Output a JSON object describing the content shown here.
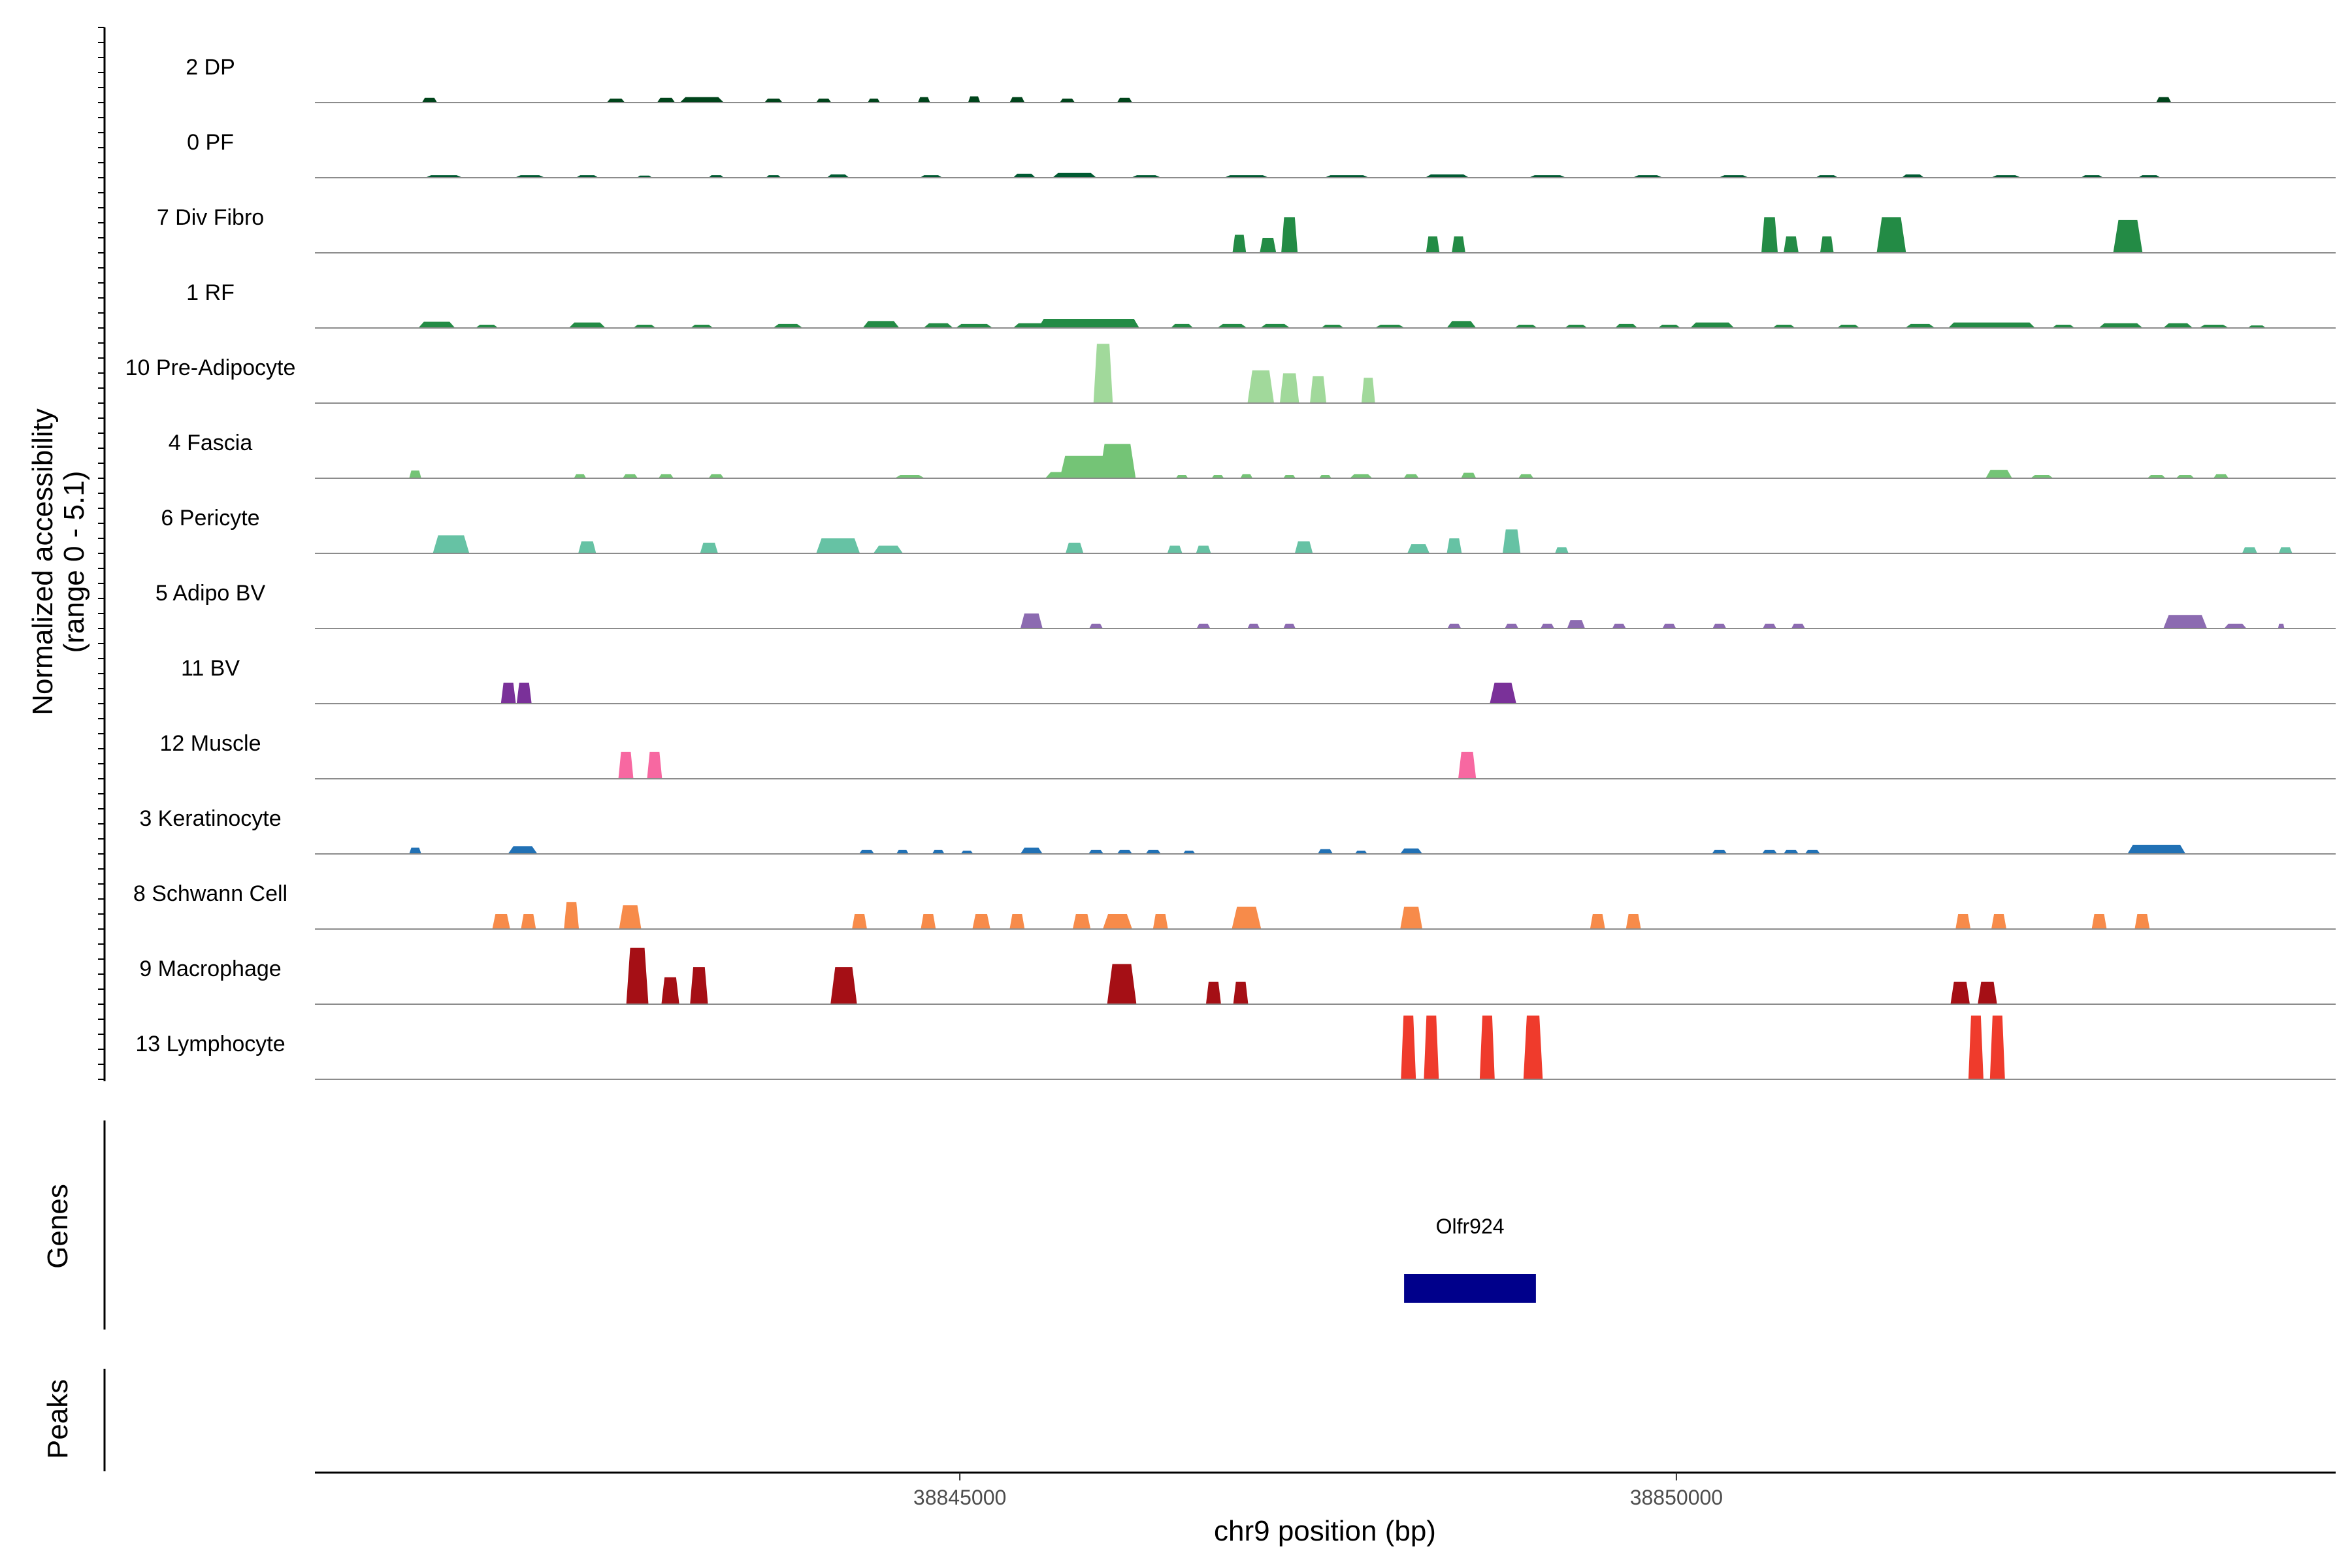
{
  "chart_data": {
    "type": "area",
    "title": "",
    "ylabel_line1": "Normalized accessibility",
    "ylabel_line2": "(range 0 - 5.1)",
    "xlabel": "chr9 position (bp)",
    "xlim": [
      38840500,
      38854600
    ],
    "ylim": [
      0,
      5.1
    ],
    "x_ticks": [
      38845000,
      38850000
    ],
    "x_tick_labels": [
      "38845000",
      "38850000"
    ],
    "genes_label": "Genes",
    "peaks_label": "Peaks",
    "genes": [
      {
        "name": "Olfr924",
        "start": 38848100,
        "end": 38849020,
        "color": "#00008b"
      }
    ],
    "peaks": [],
    "series": [
      {
        "name": "2 DP",
        "color": "#00441b",
        "peaks": [
          [
            38841300,
            100,
            0.3
          ],
          [
            38842600,
            120,
            0.25
          ],
          [
            38842950,
            120,
            0.3
          ],
          [
            38843200,
            300,
            0.35
          ],
          [
            38843700,
            120,
            0.25
          ],
          [
            38844050,
            100,
            0.25
          ],
          [
            38844400,
            80,
            0.25
          ],
          [
            38844750,
            80,
            0.35
          ],
          [
            38845100,
            80,
            0.4
          ],
          [
            38845400,
            100,
            0.35
          ],
          [
            38845750,
            100,
            0.25
          ],
          [
            38846150,
            100,
            0.3
          ],
          [
            38853400,
            100,
            0.35
          ]
        ]
      },
      {
        "name": "0 PF",
        "color": "#005a32",
        "peaks": [
          [
            38841400,
            250,
            0.15
          ],
          [
            38842000,
            200,
            0.15
          ],
          [
            38842400,
            150,
            0.15
          ],
          [
            38842800,
            100,
            0.12
          ],
          [
            38843300,
            100,
            0.15
          ],
          [
            38843700,
            100,
            0.15
          ],
          [
            38844150,
            150,
            0.2
          ],
          [
            38844800,
            150,
            0.15
          ],
          [
            38845450,
            150,
            0.25
          ],
          [
            38845800,
            300,
            0.3
          ],
          [
            38846300,
            200,
            0.15
          ],
          [
            38847000,
            300,
            0.15
          ],
          [
            38847700,
            300,
            0.15
          ],
          [
            38848400,
            300,
            0.2
          ],
          [
            38849100,
            250,
            0.15
          ],
          [
            38849800,
            200,
            0.15
          ],
          [
            38850400,
            200,
            0.15
          ],
          [
            38851050,
            150,
            0.15
          ],
          [
            38851650,
            150,
            0.2
          ],
          [
            38852300,
            200,
            0.15
          ],
          [
            38852900,
            150,
            0.15
          ],
          [
            38853300,
            150,
            0.15
          ]
        ]
      },
      {
        "name": "7 Div Fibro",
        "color": "#238b45",
        "peaks": [
          [
            38846950,
            90,
            1.2
          ],
          [
            38847150,
            110,
            1.0
          ],
          [
            38847300,
            110,
            2.4
          ],
          [
            38848300,
            90,
            1.1
          ],
          [
            38848480,
            90,
            1.1
          ],
          [
            38850650,
            110,
            2.4
          ],
          [
            38850800,
            100,
            1.1
          ],
          [
            38851050,
            90,
            1.1
          ],
          [
            38851500,
            200,
            2.4
          ],
          [
            38853150,
            200,
            2.2
          ]
        ]
      },
      {
        "name": "1 RF",
        "color": "#238b45",
        "peaks": [
          [
            38841350,
            250,
            0.4
          ],
          [
            38841700,
            150,
            0.2
          ],
          [
            38842400,
            250,
            0.35
          ],
          [
            38842800,
            150,
            0.2
          ],
          [
            38843200,
            150,
            0.2
          ],
          [
            38843800,
            200,
            0.25
          ],
          [
            38844450,
            250,
            0.45
          ],
          [
            38844850,
            200,
            0.3
          ],
          [
            38845100,
            250,
            0.25
          ],
          [
            38845500,
            250,
            0.3
          ],
          [
            38845900,
            700,
            0.6
          ],
          [
            38846550,
            150,
            0.25
          ],
          [
            38846900,
            200,
            0.25
          ],
          [
            38847200,
            200,
            0.25
          ],
          [
            38847600,
            150,
            0.2
          ],
          [
            38848000,
            200,
            0.2
          ],
          [
            38848500,
            200,
            0.45
          ],
          [
            38848950,
            150,
            0.2
          ],
          [
            38849300,
            150,
            0.2
          ],
          [
            38849650,
            150,
            0.25
          ],
          [
            38849950,
            150,
            0.2
          ],
          [
            38850250,
            300,
            0.35
          ],
          [
            38850750,
            150,
            0.2
          ],
          [
            38851200,
            150,
            0.2
          ],
          [
            38851700,
            200,
            0.25
          ],
          [
            38852200,
            600,
            0.35
          ],
          [
            38852700,
            150,
            0.2
          ],
          [
            38853100,
            300,
            0.3
          ],
          [
            38853500,
            200,
            0.3
          ],
          [
            38853750,
            200,
            0.2
          ],
          [
            38854050,
            120,
            0.15
          ]
        ]
      },
      {
        "name": "10 Pre-Adipocyte",
        "color": "#a1d99b",
        "peaks": [
          [
            38846000,
            130,
            4.0
          ],
          [
            38847100,
            180,
            2.2
          ],
          [
            38847300,
            130,
            2.0
          ],
          [
            38847500,
            110,
            1.8
          ],
          [
            38847850,
            90,
            1.7
          ]
        ]
      },
      {
        "name": "4 Fascia",
        "color": "#74c476",
        "peaks": [
          [
            38841200,
            80,
            0.5
          ],
          [
            38842350,
            80,
            0.25
          ],
          [
            38842700,
            100,
            0.25
          ],
          [
            38842950,
            100,
            0.25
          ],
          [
            38843300,
            100,
            0.25
          ],
          [
            38844650,
            200,
            0.2
          ],
          [
            38845700,
            200,
            0.4
          ],
          [
            38845950,
            500,
            1.5
          ],
          [
            38846100,
            250,
            2.3
          ],
          [
            38846550,
            80,
            0.2
          ],
          [
            38846800,
            80,
            0.2
          ],
          [
            38847000,
            80,
            0.25
          ],
          [
            38847300,
            80,
            0.2
          ],
          [
            38847550,
            80,
            0.2
          ],
          [
            38847800,
            150,
            0.25
          ],
          [
            38848150,
            100,
            0.25
          ],
          [
            38848550,
            100,
            0.35
          ],
          [
            38848950,
            100,
            0.25
          ],
          [
            38853350,
            120,
            0.2
          ],
          [
            38853550,
            120,
            0.2
          ],
          [
            38853800,
            100,
            0.25
          ],
          [
            38852250,
            180,
            0.55
          ],
          [
            38852550,
            150,
            0.2
          ]
        ]
      },
      {
        "name": "6 Pericyte",
        "color": "#66c2a4",
        "peaks": [
          [
            38841450,
            250,
            1.2
          ],
          [
            38842400,
            120,
            0.8
          ],
          [
            38843250,
            120,
            0.7
          ],
          [
            38844150,
            300,
            1.0
          ],
          [
            38844500,
            200,
            0.5
          ],
          [
            38845800,
            120,
            0.7
          ],
          [
            38846500,
            100,
            0.5
          ],
          [
            38846700,
            100,
            0.5
          ],
          [
            38847400,
            120,
            0.8
          ],
          [
            38848200,
            150,
            0.6
          ],
          [
            38848450,
            100,
            1.0
          ],
          [
            38848850,
            120,
            1.6
          ],
          [
            38849200,
            90,
            0.4
          ],
          [
            38854000,
            100,
            0.4
          ],
          [
            38854250,
            90,
            0.4
          ]
        ]
      },
      {
        "name": "5 Adipo BV",
        "color": "#8c6bb1",
        "peaks": [
          [
            38845500,
            150,
            1.0
          ],
          [
            38845950,
            90,
            0.3
          ],
          [
            38846700,
            90,
            0.3
          ],
          [
            38847050,
            80,
            0.3
          ],
          [
            38847300,
            80,
            0.3
          ],
          [
            38848450,
            90,
            0.3
          ],
          [
            38848850,
            90,
            0.3
          ],
          [
            38849100,
            90,
            0.3
          ],
          [
            38849300,
            120,
            0.55
          ],
          [
            38849600,
            90,
            0.3
          ],
          [
            38849950,
            90,
            0.3
          ],
          [
            38850300,
            90,
            0.3
          ],
          [
            38850650,
            90,
            0.3
          ],
          [
            38850850,
            90,
            0.3
          ],
          [
            38853550,
            300,
            0.9
          ],
          [
            38853900,
            150,
            0.3
          ],
          [
            38854220,
            40,
            0.3
          ]
        ]
      },
      {
        "name": "11 BV",
        "color": "#7a3199",
        "peaks": [
          [
            38841850,
            100,
            1.4
          ],
          [
            38841960,
            100,
            1.4
          ],
          [
            38848790,
            180,
            1.4
          ]
        ]
      },
      {
        "name": "12 Muscle",
        "color": "#f768a1",
        "peaks": [
          [
            38842670,
            100,
            1.8
          ],
          [
            38842870,
            100,
            1.8
          ],
          [
            38848540,
            120,
            1.8
          ]
        ]
      },
      {
        "name": "3 Keratinocyte",
        "color": "#2171b5",
        "peaks": [
          [
            38841200,
            80,
            0.4
          ],
          [
            38841950,
            200,
            0.5
          ],
          [
            38844350,
            100,
            0.25
          ],
          [
            38844600,
            80,
            0.25
          ],
          [
            38844850,
            80,
            0.25
          ],
          [
            38845050,
            80,
            0.2
          ],
          [
            38845500,
            150,
            0.4
          ],
          [
            38845950,
            100,
            0.25
          ],
          [
            38846150,
            100,
            0.25
          ],
          [
            38846350,
            100,
            0.25
          ],
          [
            38846600,
            80,
            0.2
          ],
          [
            38847550,
            100,
            0.3
          ],
          [
            38847800,
            80,
            0.2
          ],
          [
            38848150,
            150,
            0.35
          ],
          [
            38850300,
            100,
            0.25
          ],
          [
            38850650,
            100,
            0.25
          ],
          [
            38850800,
            100,
            0.25
          ],
          [
            38850950,
            100,
            0.25
          ],
          [
            38853350,
            400,
            0.6
          ]
        ]
      },
      {
        "name": "8 Schwann Cell",
        "color": "#f78b4a",
        "peaks": [
          [
            38841800,
            120,
            1.0
          ],
          [
            38841990,
            100,
            1.0
          ],
          [
            38842290,
            100,
            1.8
          ],
          [
            38842700,
            150,
            1.6
          ],
          [
            38844300,
            100,
            1.0
          ],
          [
            38844780,
            100,
            1.0
          ],
          [
            38845150,
            120,
            1.0
          ],
          [
            38845400,
            100,
            1.0
          ],
          [
            38845850,
            120,
            1.0
          ],
          [
            38846100,
            200,
            1.0
          ],
          [
            38846400,
            100,
            1.0
          ],
          [
            38847000,
            200,
            1.5
          ],
          [
            38848150,
            150,
            1.5
          ],
          [
            38849450,
            100,
            1.0
          ],
          [
            38849700,
            100,
            1.0
          ],
          [
            38852000,
            100,
            1.0
          ],
          [
            38852250,
            100,
            1.0
          ],
          [
            38852950,
            100,
            1.0
          ],
          [
            38853250,
            100,
            1.0
          ]
        ]
      },
      {
        "name": "9 Macrophage",
        "color": "#a50f15",
        "peaks": [
          [
            38842750,
            150,
            3.8
          ],
          [
            38842980,
            120,
            1.8
          ],
          [
            38843180,
            120,
            2.5
          ],
          [
            38844190,
            180,
            2.5
          ],
          [
            38846130,
            200,
            2.7
          ],
          [
            38846770,
            100,
            1.5
          ],
          [
            38846960,
            100,
            1.5
          ],
          [
            38851980,
            130,
            1.5
          ],
          [
            38852170,
            130,
            1.5
          ]
        ]
      },
      {
        "name": "13 Lymphocyte",
        "color": "#ef3b2c",
        "peaks": [
          [
            38848130,
            100,
            4.3
          ],
          [
            38848290,
            100,
            4.3
          ],
          [
            38848680,
            100,
            4.3
          ],
          [
            38849000,
            130,
            4.3
          ],
          [
            38852090,
            100,
            4.3
          ],
          [
            38852240,
            100,
            4.3
          ]
        ]
      }
    ]
  }
}
